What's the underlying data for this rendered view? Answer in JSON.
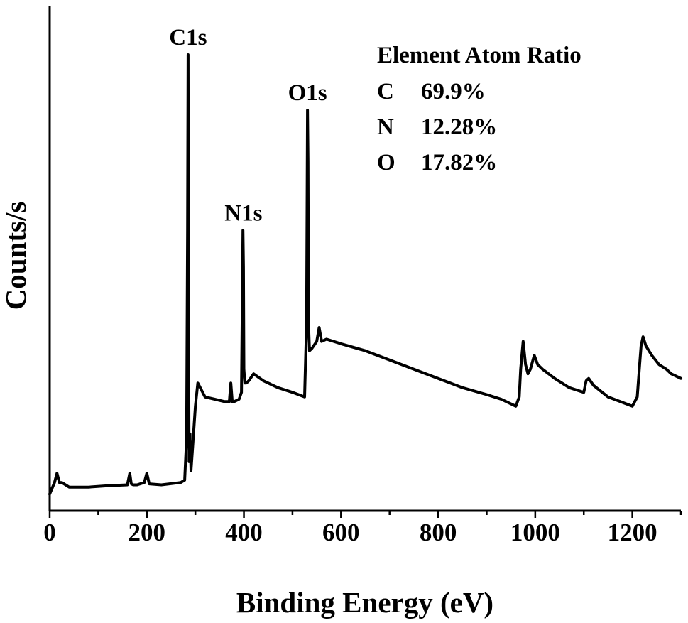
{
  "chart_data": {
    "type": "line",
    "xlabel": "Binding Energy (eV)",
    "ylabel": "Counts/s",
    "xlim": [
      0,
      1300
    ],
    "ylim": [
      0,
      100
    ],
    "xticks": [
      0,
      200,
      400,
      600,
      800,
      1000,
      1200
    ],
    "y_tick_labels_shown": false,
    "grid": false,
    "line_color": "#000000",
    "series": [
      {
        "name": "",
        "x": [
          0,
          10,
          15,
          20,
          25,
          40,
          80,
          120,
          160,
          165,
          168,
          172,
          180,
          195,
          200,
          205,
          230,
          270,
          278,
          282,
          284,
          285,
          286,
          287,
          289,
          291,
          295,
          300,
          305,
          310,
          320,
          340,
          360,
          370,
          373,
          376,
          380,
          390,
          395,
          398,
          399,
          400,
          402,
          405,
          410,
          420,
          440,
          470,
          500,
          525,
          529,
          531,
          532,
          533,
          535,
          540,
          550,
          555,
          560,
          570,
          600,
          650,
          700,
          750,
          800,
          850,
          900,
          930,
          960,
          967,
          970,
          975,
          980,
          985,
          990,
          998,
          1005,
          1015,
          1040,
          1070,
          1100,
          1105,
          1110,
          1120,
          1150,
          1200,
          1210,
          1215,
          1218,
          1222,
          1228,
          1240,
          1255,
          1270,
          1280,
          1300
        ],
        "values": [
          3.0,
          5.5,
          7.5,
          5.5,
          5.5,
          4.5,
          4.5,
          4.8,
          5.0,
          7.5,
          5.2,
          5.0,
          5.0,
          5.5,
          7.5,
          5.2,
          5.0,
          5.5,
          6.0,
          15.0,
          60.0,
          98.0,
          40.0,
          10.0,
          16.0,
          8.0,
          14.0,
          22.0,
          27.0,
          26.0,
          24.0,
          23.5,
          23.0,
          23.0,
          27.0,
          23.0,
          23.0,
          23.5,
          25.0,
          60.0,
          52.0,
          30.0,
          27.0,
          27.0,
          27.5,
          29.0,
          27.5,
          26.0,
          25.0,
          24.0,
          40.0,
          86.0,
          75.0,
          40.0,
          34.0,
          34.5,
          36.0,
          39.0,
          36.0,
          36.5,
          35.5,
          34.0,
          32.0,
          30.0,
          28.0,
          26.0,
          24.5,
          23.5,
          22.0,
          24.0,
          30.0,
          36.0,
          31.0,
          29.0,
          30.0,
          33.0,
          31.0,
          30.0,
          28.0,
          26.0,
          25.0,
          27.5,
          28.0,
          26.5,
          24.0,
          22.0,
          24.0,
          31.0,
          35.0,
          37.0,
          35.0,
          33.0,
          31.0,
          30.0,
          29.0,
          28.0
        ]
      }
    ],
    "annotations": [
      {
        "text": "C1s",
        "x": 285,
        "y": 98
      },
      {
        "text": "N1s",
        "x": 399,
        "y": 60
      },
      {
        "text": "O1s",
        "x": 531,
        "y": 86
      }
    ],
    "legend": "none"
  },
  "atom_table": {
    "header": "Element Atom Ratio",
    "rows": [
      {
        "element": "C",
        "ratio": "69.9%"
      },
      {
        "element": "N",
        "ratio": "12.28%"
      },
      {
        "element": "O",
        "ratio": "17.82%"
      }
    ]
  }
}
